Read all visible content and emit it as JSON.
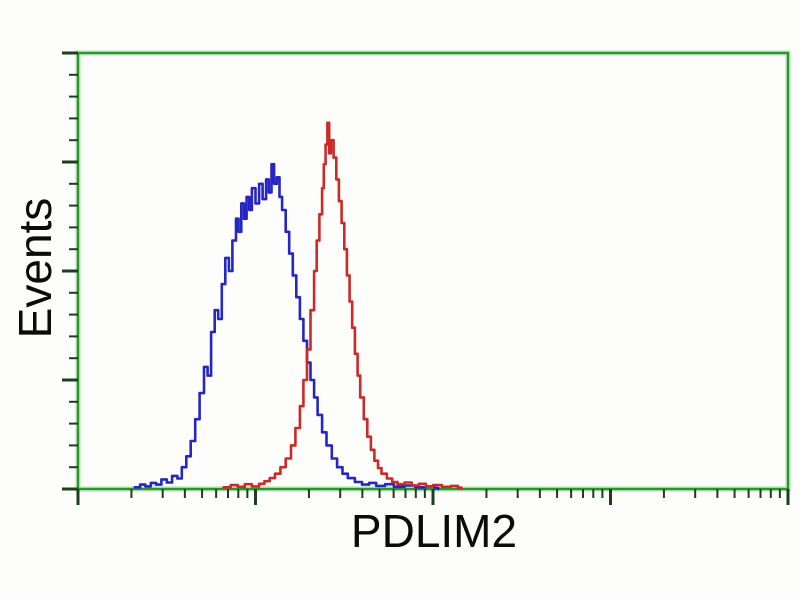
{
  "figure": {
    "kind": "flow-cytometry-histogram-overlay",
    "background": "#fdfdfc"
  },
  "chart_data": {
    "type": "line",
    "subtype": "stepped-histogram-overlay",
    "title": "",
    "xlabel": "PDLIM2",
    "ylabel": "Events",
    "x_scale": "log10",
    "x_axis": {
      "decades": 4,
      "tick_labels": [],
      "minor_ticks_per_decade": [
        2,
        3,
        4,
        5,
        6,
        7,
        8,
        9
      ]
    },
    "y_axis": {
      "scale": "linear",
      "major_divisions": 4,
      "minor_per_major": 5,
      "tick_labels": []
    },
    "grid": false,
    "legend": "none",
    "frame_color": "#2e9230",
    "frame_halo_color": "#c2ecc2",
    "tick_color": "#1c3f1c",
    "label_color": "#0b0b0b",
    "series": [
      {
        "name": "blue",
        "color": "#2626c2",
        "points": [
          [
            0.32,
            0.004
          ],
          [
            0.35,
            0.01
          ],
          [
            0.38,
            0.006
          ],
          [
            0.41,
            0.014
          ],
          [
            0.44,
            0.01
          ],
          [
            0.47,
            0.022
          ],
          [
            0.5,
            0.015
          ],
          [
            0.53,
            0.03
          ],
          [
            0.56,
            0.024
          ],
          [
            0.585,
            0.05
          ],
          [
            0.61,
            0.075
          ],
          [
            0.635,
            0.11
          ],
          [
            0.66,
            0.16
          ],
          [
            0.685,
            0.22
          ],
          [
            0.71,
            0.28
          ],
          [
            0.73,
            0.26
          ],
          [
            0.75,
            0.36
          ],
          [
            0.77,
            0.41
          ],
          [
            0.79,
            0.39
          ],
          [
            0.81,
            0.47
          ],
          [
            0.83,
            0.53
          ],
          [
            0.85,
            0.5
          ],
          [
            0.87,
            0.57
          ],
          [
            0.89,
            0.62
          ],
          [
            0.905,
            0.59
          ],
          [
            0.92,
            0.655
          ],
          [
            0.935,
            0.62
          ],
          [
            0.95,
            0.67
          ],
          [
            0.965,
            0.64
          ],
          [
            0.98,
            0.69
          ],
          [
            1.0,
            0.655
          ],
          [
            1.02,
            0.7
          ],
          [
            1.04,
            0.665
          ],
          [
            1.06,
            0.71
          ],
          [
            1.075,
            0.68
          ],
          [
            1.09,
            0.745
          ],
          [
            1.105,
            0.7
          ],
          [
            1.12,
            0.715
          ],
          [
            1.135,
            0.67
          ],
          [
            1.15,
            0.64
          ],
          [
            1.17,
            0.59
          ],
          [
            1.19,
            0.54
          ],
          [
            1.21,
            0.49
          ],
          [
            1.23,
            0.44
          ],
          [
            1.25,
            0.39
          ],
          [
            1.27,
            0.34
          ],
          [
            1.29,
            0.29
          ],
          [
            1.31,
            0.25
          ],
          [
            1.33,
            0.21
          ],
          [
            1.35,
            0.17
          ],
          [
            1.375,
            0.13
          ],
          [
            1.4,
            0.1
          ],
          [
            1.43,
            0.07
          ],
          [
            1.46,
            0.05
          ],
          [
            1.49,
            0.035
          ],
          [
            1.52,
            0.025
          ],
          [
            1.56,
            0.016
          ],
          [
            1.6,
            0.01
          ],
          [
            1.64,
            0.014
          ],
          [
            1.68,
            0.007
          ],
          [
            1.73,
            0.011
          ],
          [
            1.78,
            0.005
          ],
          [
            1.84,
            0.008
          ],
          [
            1.9,
            0.004
          ],
          [
            1.96,
            0.006
          ],
          [
            2.01,
            0.002
          ],
          [
            2.03,
            0.0
          ]
        ]
      },
      {
        "name": "red",
        "color": "#cc2a26",
        "points": [
          [
            0.82,
            0.004
          ],
          [
            0.86,
            0.009
          ],
          [
            0.9,
            0.005
          ],
          [
            0.94,
            0.011
          ],
          [
            0.98,
            0.006
          ],
          [
            1.02,
            0.012
          ],
          [
            1.05,
            0.018
          ],
          [
            1.08,
            0.025
          ],
          [
            1.11,
            0.035
          ],
          [
            1.14,
            0.05
          ],
          [
            1.17,
            0.07
          ],
          [
            1.2,
            0.1
          ],
          [
            1.225,
            0.14
          ],
          [
            1.25,
            0.19
          ],
          [
            1.27,
            0.25
          ],
          [
            1.29,
            0.32
          ],
          [
            1.31,
            0.41
          ],
          [
            1.33,
            0.5
          ],
          [
            1.345,
            0.57
          ],
          [
            1.36,
            0.63
          ],
          [
            1.375,
            0.69
          ],
          [
            1.385,
            0.745
          ],
          [
            1.395,
            0.79
          ],
          [
            1.405,
            0.84
          ],
          [
            1.415,
            0.77
          ],
          [
            1.425,
            0.8
          ],
          [
            1.44,
            0.76
          ],
          [
            1.455,
            0.71
          ],
          [
            1.47,
            0.66
          ],
          [
            1.485,
            0.61
          ],
          [
            1.5,
            0.55
          ],
          [
            1.515,
            0.49
          ],
          [
            1.53,
            0.43
          ],
          [
            1.545,
            0.37
          ],
          [
            1.56,
            0.31
          ],
          [
            1.575,
            0.26
          ],
          [
            1.59,
            0.21
          ],
          [
            1.61,
            0.16
          ],
          [
            1.63,
            0.12
          ],
          [
            1.65,
            0.09
          ],
          [
            1.67,
            0.065
          ],
          [
            1.69,
            0.048
          ],
          [
            1.71,
            0.035
          ],
          [
            1.74,
            0.024
          ],
          [
            1.77,
            0.016
          ],
          [
            1.8,
            0.011
          ],
          [
            1.84,
            0.015
          ],
          [
            1.88,
            0.008
          ],
          [
            1.92,
            0.012
          ],
          [
            1.96,
            0.006
          ],
          [
            2.0,
            0.009
          ],
          [
            2.05,
            0.005
          ],
          [
            2.1,
            0.007
          ],
          [
            2.14,
            0.003
          ],
          [
            2.16,
            0.0
          ]
        ]
      }
    ]
  }
}
